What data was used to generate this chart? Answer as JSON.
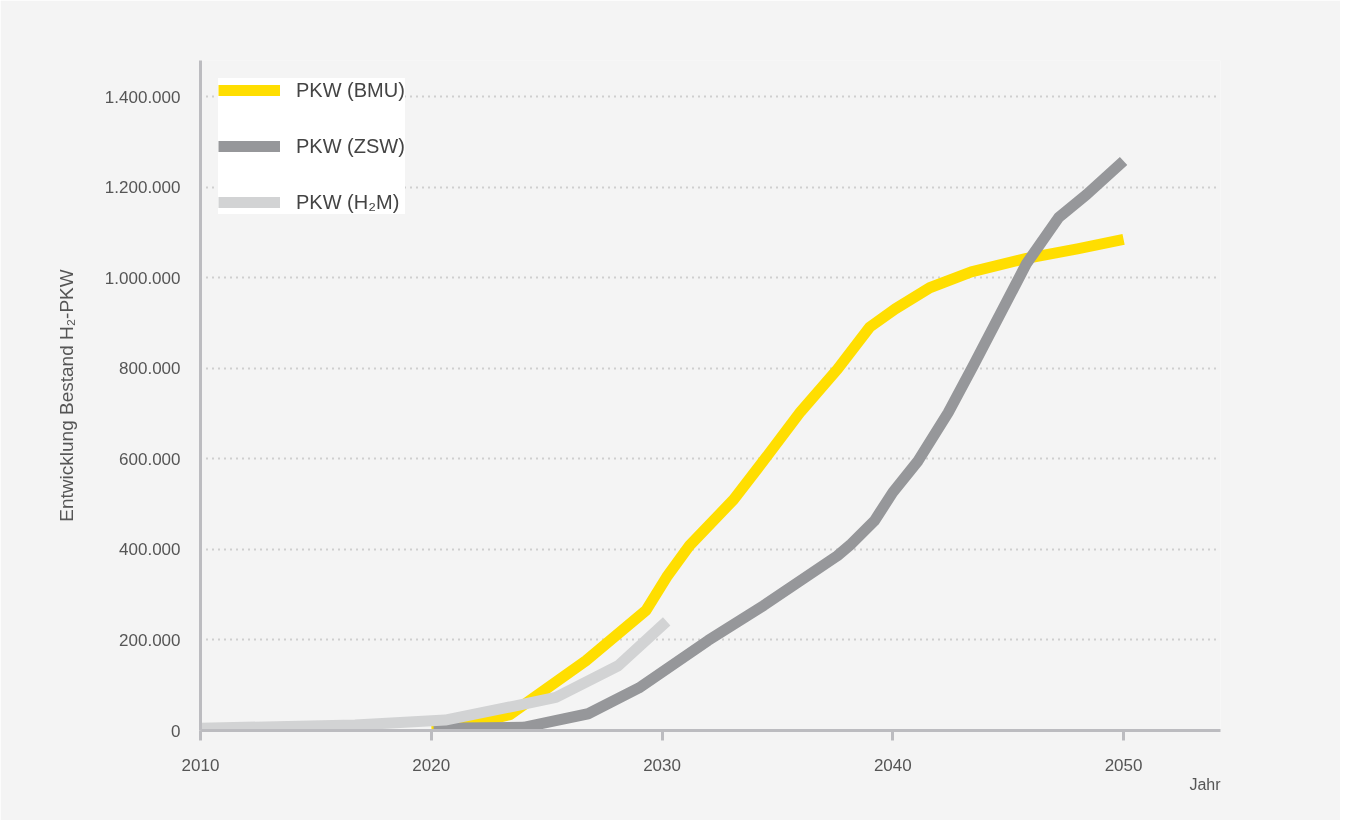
{
  "chart_data": {
    "type": "line",
    "xlabel": "Jahr",
    "ylabel": "Entwicklung Bestand H₂-PKW",
    "xlim": [
      2010,
      2054.2
    ],
    "xticks": [
      2010,
      2020,
      2030,
      2040,
      2050
    ],
    "ylim": [
      0,
      1480000
    ],
    "yticks": [
      {
        "value": 0,
        "label": "0"
      },
      {
        "value": 200000,
        "label": "200.000"
      },
      {
        "value": 400000,
        "label": "400.000"
      },
      {
        "value": 600000,
        "label": "600.000"
      },
      {
        "value": 800000,
        "label": "800.000"
      },
      {
        "value": 1000000,
        "label": "1.000.000"
      },
      {
        "value": 1200000,
        "label": "1.200.000"
      },
      {
        "value": 1400000,
        "label": "1.400.000"
      }
    ],
    "grid": "y",
    "legend": "top left",
    "marker": "none",
    "line_style": "solid",
    "series": [
      {
        "name": "PKW (BMU)",
        "color": "#ffde00",
        "x": [
          2020,
          2022.1,
          2023.4,
          2026.7,
          2029.3,
          2030.2,
          2031.2,
          2033.1,
          2034.4,
          2036,
          2037.6,
          2039,
          2040.1,
          2041.6,
          2043.4,
          2045.8,
          2048,
          2050
        ],
        "values": [
          10000,
          19000,
          35000,
          154000,
          265000,
          339000,
          409000,
          510000,
          596000,
          704000,
          798000,
          891000,
          931000,
          978000,
          1013000,
          1043000,
          1064000,
          1085000
        ]
      },
      {
        "name": "PKW (ZSW)",
        "color": "#96979a",
        "x": [
          2020.1,
          2024,
          2026.8,
          2029,
          2032,
          2034.4,
          2037.6,
          2038.2,
          2039.2,
          2040,
          2041.1,
          2042.4,
          2043.5,
          2045.8,
          2047.2,
          2048.4,
          2050
        ],
        "values": [
          5000,
          7000,
          37000,
          94000,
          199000,
          276000,
          386000,
          412000,
          463000,
          526000,
          596000,
          702000,
          807000,
          1032000,
          1134000,
          1184000,
          1258000
        ]
      },
      {
        "name": "PKW (H₂M)",
        "color": "#d2d3d4",
        "x": [
          2010,
          2016.7,
          2020.6,
          2023.6,
          2025.4,
          2028.1,
          2030.2
        ],
        "values": [
          5000,
          12000,
          23000,
          54000,
          73000,
          143000,
          241000
        ]
      }
    ]
  }
}
